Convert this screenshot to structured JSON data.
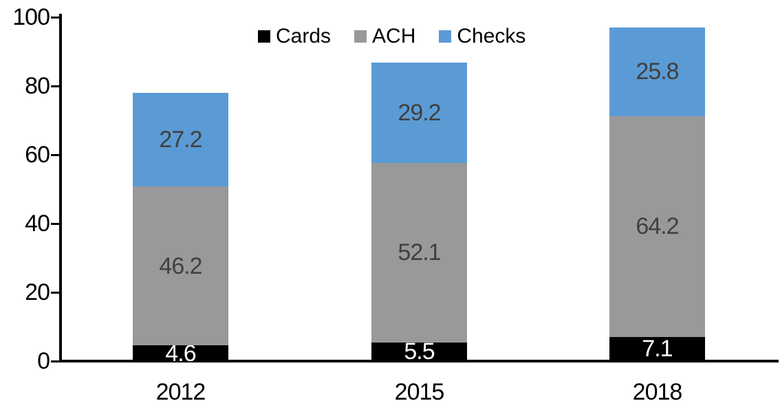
{
  "chart_data": {
    "type": "bar",
    "stacked": true,
    "title": "",
    "xlabel": "",
    "ylabel": "",
    "categories": [
      "2012",
      "2015",
      "2018"
    ],
    "series": [
      {
        "name": "Cards",
        "color": "#000000",
        "label_color": "#ffffff",
        "values": [
          4.6,
          5.5,
          7.1
        ]
      },
      {
        "name": "ACH",
        "color": "#999999",
        "label_color": "#404040",
        "values": [
          46.2,
          52.1,
          64.2
        ]
      },
      {
        "name": "Checks",
        "color": "#5B9BD5",
        "label_color": "#404040",
        "values": [
          27.2,
          29.2,
          25.8
        ]
      }
    ],
    "ylim": [
      0,
      100
    ],
    "yticks": [
      0,
      20,
      40,
      60,
      80,
      100
    ],
    "grid": false,
    "data_labels": true,
    "legend_position": "top-center",
    "axis_color": "#000000",
    "background_color": "#ffffff"
  }
}
